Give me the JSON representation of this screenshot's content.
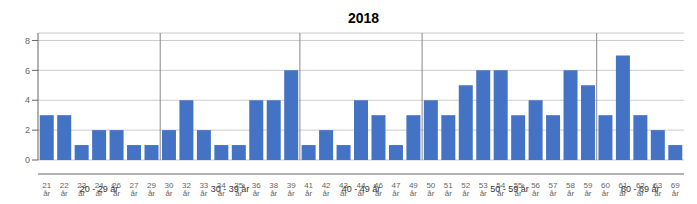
{
  "chart_data": {
    "type": "bar",
    "title": "2018",
    "color": "#4472C4",
    "categories": [
      "21\når",
      "22\når",
      "23\når",
      "24\når",
      "26\når",
      "27\når",
      "29\når",
      "30\når",
      "32\når",
      "33\når",
      "34\når",
      "35\når",
      "36\når",
      "38\når",
      "39\når",
      "41\når",
      "42\når",
      "43\når",
      "44\når",
      "46\når",
      "47\når",
      "49\når",
      "50\når",
      "51\når",
      "52\når",
      "53\når",
      "54\når",
      "55\når",
      "56\når",
      "57\når",
      "58\når",
      "59\når",
      "60\når",
      "61\når",
      "62\når",
      "63\når",
      "69\når"
    ],
    "values": [
      3,
      3,
      1,
      2,
      2,
      1,
      1,
      2,
      4,
      2,
      1,
      1,
      4,
      4,
      6,
      1,
      2,
      1,
      4,
      3,
      1,
      3,
      4,
      3,
      5,
      6,
      6,
      3,
      4,
      3,
      6,
      5,
      3,
      7,
      3,
      2,
      1
    ],
    "ylim": [
      0,
      8.5
    ],
    "yticks": [
      0,
      2,
      4,
      6,
      8
    ],
    "grid": true,
    "groups": [
      {
        "label": "20 - 29 år",
        "span": [
          0,
          6
        ]
      },
      {
        "label": "30 - 39 år",
        "span": [
          7,
          14
        ]
      },
      {
        "label": "40 - 49 år",
        "span": [
          15,
          21
        ]
      },
      {
        "label": "50 - 59 år",
        "span": [
          22,
          31
        ]
      },
      {
        "label": "60 - 69 år",
        "span": [
          32,
          36
        ]
      }
    ]
  }
}
